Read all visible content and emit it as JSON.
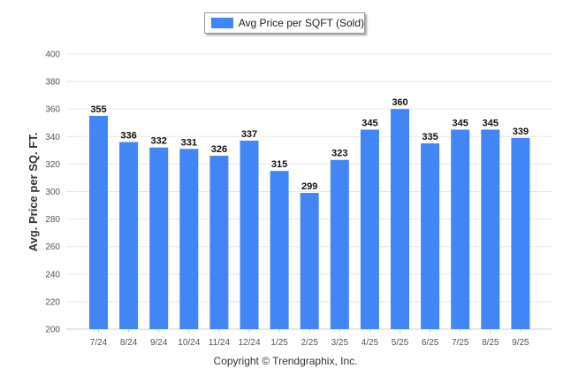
{
  "legend": {
    "label": "Avg Price per SQFT (Sold)"
  },
  "footer": {
    "copyright": "Copyright © Trendgraphix, Inc."
  },
  "colors": {
    "bar": "#4285f4",
    "grid": "#e8e8e8",
    "axis": "#cccccc"
  },
  "chart_data": {
    "type": "bar",
    "ylabel": "Avg. Price per SQ. FT.",
    "xlabel": "",
    "ylim": [
      200,
      400
    ],
    "yticks": [
      200,
      220,
      240,
      260,
      280,
      300,
      320,
      340,
      360,
      380,
      400
    ],
    "grid": true,
    "legend_position": "top-center",
    "categories": [
      "7/24",
      "8/24",
      "9/24",
      "10/24",
      "11/24",
      "12/24",
      "1/25",
      "2/25",
      "3/25",
      "4/25",
      "5/25",
      "6/25",
      "7/25",
      "8/25",
      "9/25"
    ],
    "series": [
      {
        "name": "Avg Price per SQFT (Sold)",
        "values": [
          355,
          336,
          332,
          331,
          326,
          337,
          315,
          299,
          323,
          345,
          360,
          335,
          345,
          345,
          339
        ]
      }
    ]
  }
}
